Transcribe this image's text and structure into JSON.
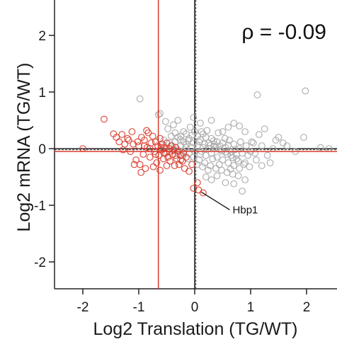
{
  "chart_data": {
    "type": "scatter",
    "xlabel": "Log2 Translation (TG/WT)",
    "ylabel": "Log2 mRNA (TG/WT)",
    "xlim": [
      -2.5,
      2.5
    ],
    "ylim": [
      -2.5,
      2.5
    ],
    "xticks": [
      -2,
      -1,
      0,
      1,
      2
    ],
    "yticks": [
      -2,
      -1,
      0,
      1,
      2
    ],
    "xtick_labels": [
      "-2",
      "-1",
      "0",
      "1",
      "2"
    ],
    "ytick_labels": [
      "-2",
      "-1",
      "0",
      "1",
      "2"
    ],
    "correlation_label": "ρ = -0.09",
    "grid": false,
    "reference_lines": {
      "red_vertical_x": -0.65,
      "red_horizontal_y": -0.05,
      "black_vertical_x": 0.0,
      "black_horizontal_y": 0.0,
      "dashed_vertical_x": 0.02,
      "dashed_horizontal_y": -0.02
    },
    "annotation": {
      "text": "Hbp1",
      "point": [
        0.07,
        -0.73
      ]
    },
    "colors": {
      "red": "#d93a2b",
      "gray": "#a8a8a8",
      "axis": "#222222"
    },
    "series": [
      {
        "color": "red",
        "points": [
          [
            -2.0,
            0.0
          ],
          [
            -1.62,
            0.52
          ],
          [
            -1.45,
            0.26
          ],
          [
            -1.4,
            0.2
          ],
          [
            -1.35,
            0.12
          ],
          [
            -1.3,
            0.25
          ],
          [
            -1.25,
            0.08
          ],
          [
            -1.2,
            0.18
          ],
          [
            -1.15,
            -0.05
          ],
          [
            -1.12,
            0.3
          ],
          [
            -1.1,
            0.08
          ],
          [
            -1.05,
            -0.2
          ],
          [
            -1.02,
            0.12
          ],
          [
            -1.0,
            0.05
          ],
          [
            -0.98,
            -0.28
          ],
          [
            -0.95,
            0.2
          ],
          [
            -0.92,
            -0.1
          ],
          [
            -0.9,
            0.15
          ],
          [
            -0.88,
            -0.35
          ],
          [
            -0.85,
            0.02
          ],
          [
            -0.83,
            0.28
          ],
          [
            -0.8,
            -0.15
          ],
          [
            -0.78,
            0.1
          ],
          [
            -0.75,
            0.22
          ],
          [
            -0.72,
            -0.05
          ],
          [
            -0.7,
            0.12
          ],
          [
            -0.68,
            -0.25
          ],
          [
            -0.66,
            0.05
          ],
          [
            -0.64,
            -0.12
          ],
          [
            -0.62,
            0.18
          ],
          [
            -0.6,
            -0.02
          ],
          [
            -0.58,
            0.08
          ],
          [
            -0.56,
            -0.18
          ],
          [
            -0.54,
            0.02
          ],
          [
            -0.52,
            -0.08
          ],
          [
            -0.5,
            0.1
          ],
          [
            -0.48,
            -0.15
          ],
          [
            -0.46,
            0.0
          ],
          [
            -0.44,
            -0.22
          ],
          [
            -0.42,
            0.05
          ],
          [
            -0.4,
            -0.1
          ],
          [
            -0.38,
            -0.02
          ],
          [
            -0.36,
            -0.3
          ],
          [
            -0.34,
            0.02
          ],
          [
            -0.32,
            -0.18
          ],
          [
            -0.3,
            -0.05
          ],
          [
            -0.28,
            -0.28
          ],
          [
            -0.25,
            -0.12
          ],
          [
            -0.22,
            -0.22
          ],
          [
            -0.2,
            -0.08
          ],
          [
            -0.18,
            -0.35
          ],
          [
            -0.15,
            -0.15
          ],
          [
            -1.08,
            -0.28
          ],
          [
            -0.96,
            -0.42
          ],
          [
            -0.86,
            0.32
          ],
          [
            -0.74,
            -0.32
          ],
          [
            -0.62,
            -0.38
          ],
          [
            -0.5,
            -0.3
          ],
          [
            -0.9,
            0.05
          ],
          [
            -0.8,
            0.0
          ],
          [
            -0.7,
            -0.1
          ],
          [
            -0.6,
            0.02
          ],
          [
            -0.55,
            -0.08
          ],
          [
            -0.45,
            -0.05
          ],
          [
            -0.35,
            -0.12
          ],
          [
            -0.25,
            -0.2
          ],
          [
            -1.18,
            0.15
          ],
          [
            -1.28,
            -0.02
          ],
          [
            -0.02,
            -0.7
          ],
          [
            0.07,
            -0.73
          ],
          [
            0.15,
            -0.78
          ],
          [
            0.05,
            -0.6
          ],
          [
            -0.1,
            -0.4
          ],
          [
            -0.05,
            -0.28
          ]
        ]
      },
      {
        "color": "gray",
        "points": [
          [
            -0.98,
            0.88
          ],
          [
            -0.62,
            0.62
          ],
          [
            -0.65,
            0.6
          ],
          [
            -0.52,
            0.48
          ],
          [
            -0.48,
            0.35
          ],
          [
            -0.38,
            0.42
          ],
          [
            -0.35,
            0.28
          ],
          [
            -0.3,
            0.2
          ],
          [
            -0.25,
            0.22
          ],
          [
            -0.2,
            0.3
          ],
          [
            -0.15,
            0.26
          ],
          [
            -0.1,
            0.18
          ],
          [
            -0.05,
            0.24
          ],
          [
            0.0,
            0.3
          ],
          [
            0.05,
            0.22
          ],
          [
            0.1,
            0.16
          ],
          [
            0.15,
            0.26
          ],
          [
            0.2,
            0.2
          ],
          [
            0.25,
            0.1
          ],
          [
            0.3,
            0.18
          ],
          [
            0.35,
            0.08
          ],
          [
            0.4,
            0.12
          ],
          [
            0.45,
            0.05
          ],
          [
            0.5,
            0.1
          ],
          [
            0.55,
            0.02
          ],
          [
            0.6,
            0.06
          ],
          [
            0.65,
            -0.05
          ],
          [
            0.7,
            0.08
          ],
          [
            0.75,
            -0.1
          ],
          [
            0.8,
            0.0
          ],
          [
            -0.45,
            0.1
          ],
          [
            -0.4,
            0.05
          ],
          [
            -0.35,
            0.12
          ],
          [
            -0.3,
            -0.02
          ],
          [
            -0.25,
            0.05
          ],
          [
            -0.2,
            -0.05
          ],
          [
            -0.15,
            0.08
          ],
          [
            -0.1,
            -0.08
          ],
          [
            -0.05,
            0.02
          ],
          [
            0.0,
            -0.05
          ],
          [
            0.05,
            0.05
          ],
          [
            0.1,
            -0.1
          ],
          [
            0.15,
            0.02
          ],
          [
            0.2,
            -0.12
          ],
          [
            0.25,
            0.0
          ],
          [
            0.3,
            -0.08
          ],
          [
            0.35,
            0.04
          ],
          [
            0.4,
            -0.15
          ],
          [
            0.45,
            -0.02
          ],
          [
            0.5,
            -0.2
          ],
          [
            0.55,
            -0.06
          ],
          [
            0.6,
            -0.25
          ],
          [
            0.65,
            -0.12
          ],
          [
            0.7,
            -0.3
          ],
          [
            0.75,
            -0.18
          ],
          [
            0.8,
            -0.35
          ],
          [
            0.85,
            -0.08
          ],
          [
            0.9,
            -0.25
          ],
          [
            0.95,
            -0.12
          ],
          [
            1.0,
            -0.05
          ],
          [
            -0.2,
            0.12
          ],
          [
            -0.12,
            0.14
          ],
          [
            -0.02,
            0.1
          ],
          [
            0.08,
            0.12
          ],
          [
            0.18,
            0.08
          ],
          [
            0.28,
            0.06
          ],
          [
            0.38,
            0.02
          ],
          [
            0.48,
            -0.04
          ],
          [
            0.58,
            -0.1
          ],
          [
            0.68,
            -0.16
          ],
          [
            0.78,
            -0.22
          ],
          [
            0.88,
            -0.28
          ],
          [
            -0.22,
            -0.12
          ],
          [
            -0.12,
            -0.18
          ],
          [
            -0.02,
            -0.15
          ],
          [
            0.08,
            -0.2
          ],
          [
            0.18,
            -0.25
          ],
          [
            0.28,
            -0.3
          ],
          [
            0.38,
            -0.35
          ],
          [
            0.48,
            -0.38
          ],
          [
            0.58,
            -0.42
          ],
          [
            0.68,
            -0.45
          ],
          [
            0.78,
            -0.48
          ],
          [
            0.9,
            -0.55
          ],
          [
            0.2,
            -0.5
          ],
          [
            0.3,
            -0.55
          ],
          [
            0.4,
            -0.48
          ],
          [
            0.55,
            -0.6
          ],
          [
            0.7,
            -0.62
          ],
          [
            0.85,
            -0.75
          ],
          [
            0.98,
            -0.32
          ],
          [
            1.05,
            0.1
          ],
          [
            1.1,
            -0.2
          ],
          [
            1.2,
            0.05
          ],
          [
            1.3,
            -0.12
          ],
          [
            1.4,
            0.0
          ],
          [
            1.5,
            0.2
          ],
          [
            1.65,
            0.05
          ],
          [
            1.8,
            -0.05
          ],
          [
            1.95,
            0.2
          ],
          [
            2.25,
            0.02
          ],
          [
            2.4,
            0.0
          ],
          [
            1.15,
            0.25
          ],
          [
            1.25,
            0.35
          ],
          [
            0.9,
            0.3
          ],
          [
            0.8,
            0.4
          ],
          [
            0.7,
            0.45
          ],
          [
            0.6,
            0.38
          ],
          [
            0.5,
            0.3
          ],
          [
            1.45,
            0.15
          ],
          [
            1.35,
            -0.25
          ],
          [
            1.58,
            0.1
          ],
          [
            1.2,
            -0.3
          ],
          [
            1.02,
            0.12
          ],
          [
            1.12,
            0.95
          ],
          [
            1.98,
            1.02
          ],
          [
            0.3,
            0.5
          ],
          [
            0.1,
            0.45
          ],
          [
            -0.02,
            0.55
          ],
          [
            -0.3,
            0.5
          ],
          [
            -0.42,
            0.22
          ],
          [
            -0.55,
            0.15
          ],
          [
            -0.5,
            -0.05
          ],
          [
            0.12,
            0.3
          ],
          [
            0.22,
            0.32
          ],
          [
            0.42,
            0.28
          ],
          [
            -0.08,
            0.38
          ],
          [
            0.32,
            -0.18
          ],
          [
            0.12,
            -0.05
          ],
          [
            0.62,
            0.15
          ],
          [
            0.72,
            -0.02
          ],
          [
            0.82,
            0.12
          ],
          [
            0.92,
            0.05
          ],
          [
            1.08,
            -0.08
          ],
          [
            0.24,
            -0.38
          ],
          [
            0.44,
            -0.28
          ],
          [
            0.64,
            -0.36
          ],
          [
            0.14,
            -0.32
          ],
          [
            0.34,
            0.14
          ],
          [
            0.54,
            0.18
          ],
          [
            0.04,
            -0.28
          ],
          [
            -0.16,
            0.02
          ],
          [
            -0.26,
            0.16
          ],
          [
            -0.36,
            -0.04
          ]
        ]
      }
    ]
  }
}
